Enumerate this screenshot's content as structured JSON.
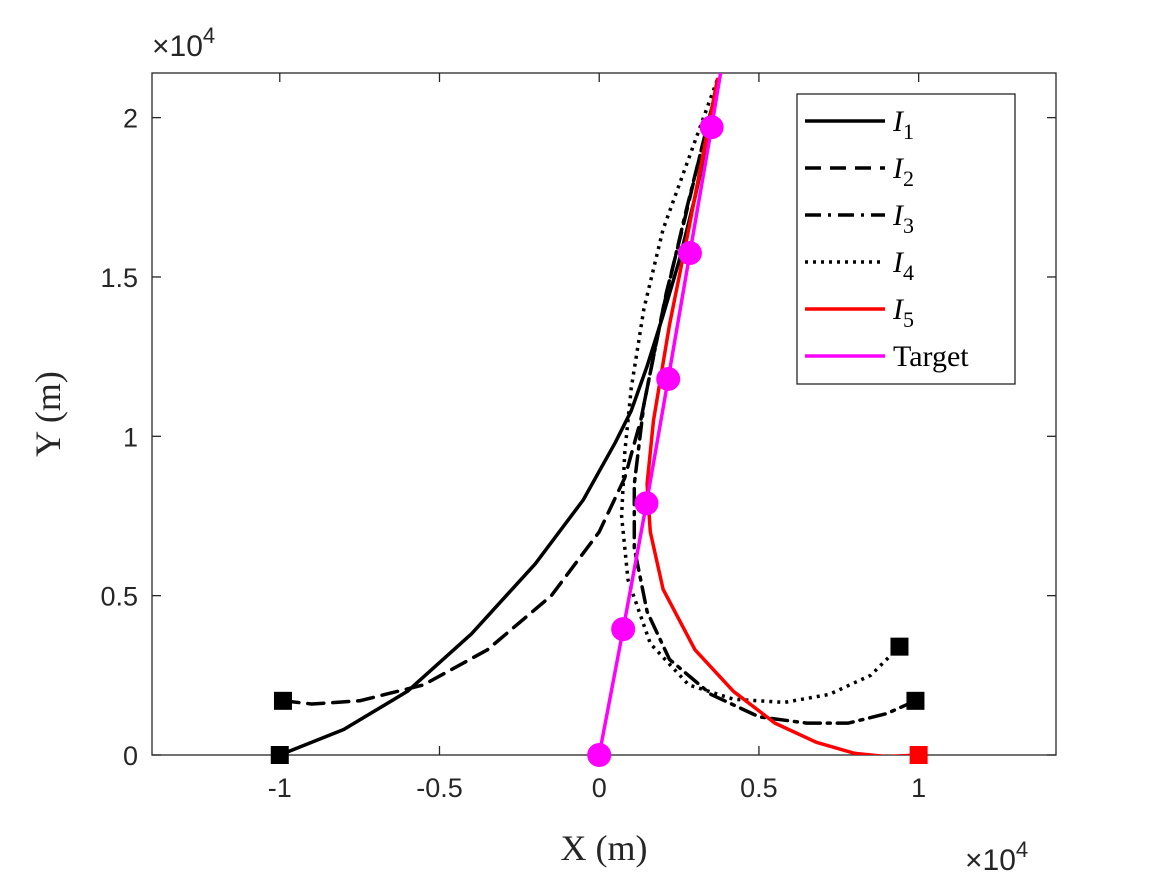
{
  "chart_data": {
    "type": "line",
    "xlabel": "X (m)",
    "ylabel": "Y (m)",
    "x_exponent_label": "×10^4",
    "y_exponent_label": "×10^4",
    "x_exponent": {
      "base": "×10",
      "power": "4"
    },
    "y_exponent": {
      "base": "×10",
      "power": "4"
    },
    "xlim": [
      -1.4,
      1.43
    ],
    "ylim": [
      0,
      2.14
    ],
    "x_ticks": [
      -1,
      -0.5,
      0,
      0.5,
      1
    ],
    "x_tick_labels": [
      "-1",
      "-0.5",
      "0",
      "0.5",
      "1"
    ],
    "y_ticks": [
      0,
      0.5,
      1,
      1.5,
      2
    ],
    "y_tick_labels": [
      "0",
      "0.5",
      "1",
      "1.5",
      "2"
    ],
    "grid": false,
    "legend_position": "top-right",
    "series": [
      {
        "name": "I1",
        "label_base": "I",
        "label_sub": "1",
        "color": "#000000",
        "style": "solid",
        "x": [
          -1.0,
          -0.8,
          -0.6,
          -0.4,
          -0.2,
          -0.05,
          0.05,
          0.1,
          0.15,
          0.2,
          0.25,
          0.3,
          0.35,
          0.37
        ],
        "y": [
          0.0,
          0.08,
          0.2,
          0.38,
          0.6,
          0.8,
          0.98,
          1.08,
          1.22,
          1.38,
          1.55,
          1.75,
          1.98,
          2.1
        ],
        "end_marker": "square",
        "end_color": "#000000"
      },
      {
        "name": "I2",
        "label_base": "I",
        "label_sub": "2",
        "color": "#000000",
        "style": "dashed",
        "x": [
          -0.99,
          -0.9,
          -0.75,
          -0.55,
          -0.35,
          -0.15,
          0.0,
          0.08,
          0.13,
          0.17,
          0.21,
          0.26,
          0.32,
          0.37
        ],
        "y": [
          0.17,
          0.16,
          0.17,
          0.22,
          0.33,
          0.5,
          0.7,
          0.87,
          1.05,
          1.25,
          1.45,
          1.65,
          1.9,
          2.1
        ],
        "end_marker": "square",
        "end_color": "#000000"
      },
      {
        "name": "I3",
        "label_base": "I",
        "label_sub": "3",
        "color": "#000000",
        "style": "dashdot",
        "x": [
          0.99,
          0.9,
          0.78,
          0.65,
          0.5,
          0.35,
          0.22,
          0.15,
          0.11,
          0.11,
          0.14,
          0.2,
          0.27,
          0.37
        ],
        "y": [
          0.17,
          0.13,
          0.1,
          0.1,
          0.12,
          0.19,
          0.3,
          0.45,
          0.65,
          0.85,
          1.1,
          1.4,
          1.7,
          2.1
        ],
        "end_marker": "square",
        "end_color": "#000000"
      },
      {
        "name": "I4",
        "label_base": "I",
        "label_sub": "4",
        "color": "#000000",
        "style": "dotted",
        "x": [
          0.94,
          0.85,
          0.72,
          0.58,
          0.42,
          0.28,
          0.16,
          0.09,
          0.07,
          0.08,
          0.1,
          0.14,
          0.2,
          0.37
        ],
        "y": [
          0.34,
          0.25,
          0.19,
          0.165,
          0.175,
          0.22,
          0.35,
          0.55,
          0.75,
          0.95,
          1.15,
          1.4,
          1.65,
          2.12
        ],
        "end_marker": "square",
        "end_color": "#000000"
      },
      {
        "name": "I5",
        "label_base": "I",
        "label_sub": "5",
        "color": "#ff0000",
        "style": "solid",
        "x": [
          1.0,
          0.9,
          0.8,
          0.68,
          0.55,
          0.42,
          0.3,
          0.2,
          0.16,
          0.15,
          0.17,
          0.22,
          0.28,
          0.37
        ],
        "y": [
          0.0,
          -0.005,
          0.005,
          0.04,
          0.1,
          0.2,
          0.33,
          0.52,
          0.7,
          0.85,
          1.05,
          1.35,
          1.65,
          2.12
        ],
        "end_marker": "square",
        "end_color": "#ff0000"
      },
      {
        "name": "Target",
        "label_base": "Target",
        "label_sub": "",
        "color": "#ff00ff",
        "style": "solid",
        "x": [
          0.0,
          0.075,
          0.148,
          0.216,
          0.284,
          0.352,
          0.38
        ],
        "y": [
          0.0,
          0.395,
          0.79,
          1.18,
          1.575,
          1.97,
          2.14
        ],
        "markers": [
          {
            "x": 0.0,
            "y": 0.0
          },
          {
            "x": 0.075,
            "y": 0.395
          },
          {
            "x": 0.148,
            "y": 0.79
          },
          {
            "x": 0.216,
            "y": 1.18
          },
          {
            "x": 0.284,
            "y": 1.575
          },
          {
            "x": 0.352,
            "y": 1.97
          }
        ]
      }
    ]
  }
}
